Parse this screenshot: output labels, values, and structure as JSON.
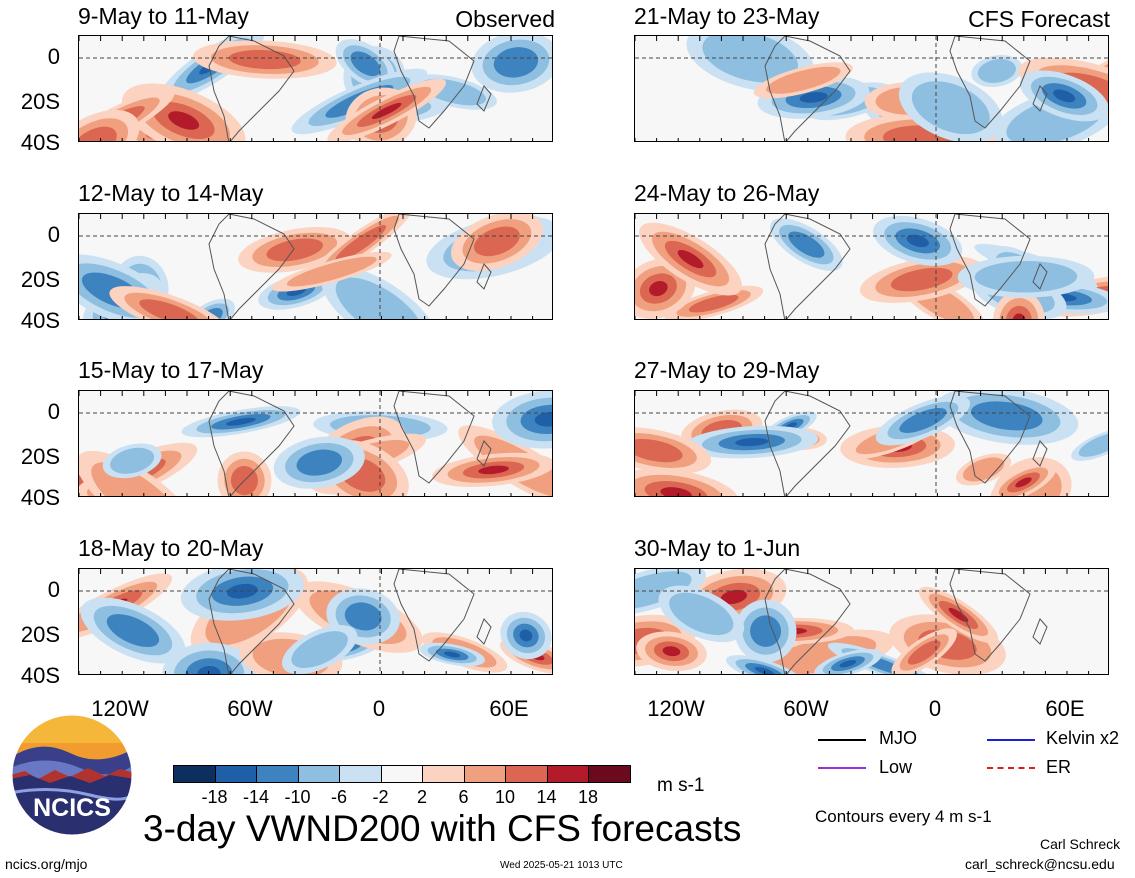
{
  "panels": [
    {
      "title": "9-May to 11-May",
      "label": "Observed"
    },
    {
      "title": "12-May to 14-May",
      "label": ""
    },
    {
      "title": "15-May to 17-May",
      "label": ""
    },
    {
      "title": "18-May to 20-May",
      "label": ""
    },
    {
      "title": "21-May to 23-May",
      "label": "CFS Forecast"
    },
    {
      "title": "24-May to 26-May",
      "label": ""
    },
    {
      "title": "27-May to 29-May",
      "label": ""
    },
    {
      "title": "30-May to 1-Jun",
      "label": ""
    }
  ],
  "axes": {
    "y_ticks": [
      "0",
      "20S",
      "40S"
    ],
    "x_ticks": [
      "120W",
      "60W",
      "0",
      "60E"
    ]
  },
  "legend": {
    "items": [
      {
        "label": "MJO",
        "color": "#000000"
      },
      {
        "label": "Kelvin x2",
        "color": "#1f1fd6"
      },
      {
        "label": "Low",
        "color": "#9b30d9"
      },
      {
        "label": "ER",
        "color": "#d62020"
      }
    ],
    "contour_note": "Contours every 4 m s-1"
  },
  "colorbar": {
    "colors": [
      "#0b2f5e",
      "#1f5fa8",
      "#3c83c0",
      "#8fbfe0",
      "#c9e1f2",
      "#f7f7f7",
      "#fbd3c0",
      "#f0a07f",
      "#db6651",
      "#b31b2b",
      "#6b0a1e"
    ],
    "labels": [
      "-18",
      "-14",
      "-10",
      "-6",
      "-2",
      "2",
      "6",
      "10",
      "14",
      "18"
    ],
    "units": "m s-1"
  },
  "title": "3-day VWND200 with CFS forecasts",
  "footer": {
    "left": "ncics.org/mjo",
    "center": "Wed 2025-05-21 1013 UTC",
    "author": "Carl Schreck",
    "email": "carl_schreck@ncsu.edu"
  },
  "logo_text": "NCICS"
}
